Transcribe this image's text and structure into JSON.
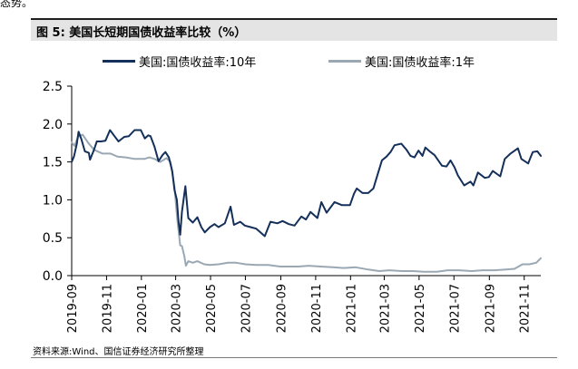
{
  "page": {
    "top_fragment": "态势。"
  },
  "figure": {
    "title": "图 5:  美国长短期国债收益率比较（%）",
    "source": "资料来源:Wind、国信证券经济研究所整理"
  },
  "colors": {
    "series_10y": "#14305a",
    "series_1y": "#9aa8b4",
    "axis": "#000000",
    "title_bg": "#e4e4e4"
  },
  "chart_data": {
    "type": "line",
    "title": "",
    "xlabel": "",
    "ylabel": "",
    "ylim": [
      0,
      2.5
    ],
    "yticks": [
      "0.0",
      "0.5",
      "1.0",
      "1.5",
      "2.0",
      "2.5"
    ],
    "xticks": [
      "2019-09",
      "2019-11",
      "2020-01",
      "2020-03",
      "2020-05",
      "2020-07",
      "2020-09",
      "2020-11",
      "2021-01",
      "2021-03",
      "2021-05",
      "2021-07",
      "2021-09",
      "2021-11"
    ],
    "xlim": [
      "2019-09-01",
      "2021-11-30"
    ],
    "grid": false,
    "legend_position": "top",
    "series": [
      {
        "name": "美国:国债收益率:10年",
        "points": [
          [
            "2019-09-01",
            1.5
          ],
          [
            "2019-09-05",
            1.57
          ],
          [
            "2019-09-10",
            1.74
          ],
          [
            "2019-09-13",
            1.9
          ],
          [
            "2019-09-18",
            1.8
          ],
          [
            "2019-09-24",
            1.64
          ],
          [
            "2019-10-01",
            1.62
          ],
          [
            "2019-10-03",
            1.53
          ],
          [
            "2019-10-10",
            1.66
          ],
          [
            "2019-10-15",
            1.77
          ],
          [
            "2019-10-22",
            1.77
          ],
          [
            "2019-10-30",
            1.78
          ],
          [
            "2019-11-07",
            1.92
          ],
          [
            "2019-11-15",
            1.84
          ],
          [
            "2019-11-22",
            1.77
          ],
          [
            "2019-12-02",
            1.83
          ],
          [
            "2019-12-10",
            1.84
          ],
          [
            "2019-12-20",
            1.92
          ],
          [
            "2019-12-31",
            1.92
          ],
          [
            "2020-01-07",
            1.81
          ],
          [
            "2020-01-13",
            1.85
          ],
          [
            "2020-01-17",
            1.84
          ],
          [
            "2020-01-24",
            1.7
          ],
          [
            "2020-01-31",
            1.51
          ],
          [
            "2020-02-07",
            1.59
          ],
          [
            "2020-02-12",
            1.63
          ],
          [
            "2020-02-18",
            1.56
          ],
          [
            "2020-02-24",
            1.38
          ],
          [
            "2020-02-28",
            1.13
          ],
          [
            "2020-03-03",
            1.0
          ],
          [
            "2020-03-06",
            0.71
          ],
          [
            "2020-03-09",
            0.54
          ],
          [
            "2020-03-12",
            0.84
          ],
          [
            "2020-03-18",
            1.18
          ],
          [
            "2020-03-23",
            0.76
          ],
          [
            "2020-03-31",
            0.7
          ],
          [
            "2020-04-08",
            0.77
          ],
          [
            "2020-04-15",
            0.64
          ],
          [
            "2020-04-21",
            0.57
          ],
          [
            "2020-04-30",
            0.64
          ],
          [
            "2020-05-08",
            0.68
          ],
          [
            "2020-05-15",
            0.64
          ],
          [
            "2020-05-26",
            0.69
          ],
          [
            "2020-06-05",
            0.91
          ],
          [
            "2020-06-11",
            0.67
          ],
          [
            "2020-06-22",
            0.71
          ],
          [
            "2020-06-30",
            0.66
          ],
          [
            "2020-07-10",
            0.64
          ],
          [
            "2020-07-20",
            0.62
          ],
          [
            "2020-08-04",
            0.52
          ],
          [
            "2020-08-14",
            0.71
          ],
          [
            "2020-08-26",
            0.69
          ],
          [
            "2020-09-04",
            0.72
          ],
          [
            "2020-09-15",
            0.68
          ],
          [
            "2020-09-25",
            0.66
          ],
          [
            "2020-10-07",
            0.78
          ],
          [
            "2020-10-15",
            0.74
          ],
          [
            "2020-10-23",
            0.84
          ],
          [
            "2020-11-04",
            0.76
          ],
          [
            "2020-11-11",
            0.97
          ],
          [
            "2020-11-20",
            0.83
          ],
          [
            "2020-12-04",
            0.97
          ],
          [
            "2020-12-17",
            0.93
          ],
          [
            "2020-12-31",
            0.93
          ],
          [
            "2021-01-07",
            1.08
          ],
          [
            "2021-01-12",
            1.15
          ],
          [
            "2021-01-22",
            1.09
          ],
          [
            "2021-02-01",
            1.09
          ],
          [
            "2021-02-10",
            1.15
          ],
          [
            "2021-02-16",
            1.3
          ],
          [
            "2021-02-25",
            1.52
          ],
          [
            "2021-03-05",
            1.57
          ],
          [
            "2021-03-12",
            1.63
          ],
          [
            "2021-03-19",
            1.72
          ],
          [
            "2021-03-31",
            1.74
          ],
          [
            "2021-04-09",
            1.66
          ],
          [
            "2021-04-16",
            1.58
          ],
          [
            "2021-04-23",
            1.56
          ],
          [
            "2021-04-30",
            1.65
          ],
          [
            "2021-05-07",
            1.58
          ],
          [
            "2021-05-12",
            1.69
          ],
          [
            "2021-05-21",
            1.63
          ],
          [
            "2021-05-28",
            1.59
          ],
          [
            "2021-06-10",
            1.45
          ],
          [
            "2021-06-18",
            1.44
          ],
          [
            "2021-06-25",
            1.52
          ],
          [
            "2021-07-02",
            1.43
          ],
          [
            "2021-07-08",
            1.32
          ],
          [
            "2021-07-19",
            1.19
          ],
          [
            "2021-07-30",
            1.24
          ],
          [
            "2021-08-04",
            1.19
          ],
          [
            "2021-08-12",
            1.36
          ],
          [
            "2021-08-24",
            1.29
          ],
          [
            "2021-08-31",
            1.3
          ],
          [
            "2021-09-07",
            1.38
          ],
          [
            "2021-09-20",
            1.31
          ],
          [
            "2021-09-28",
            1.54
          ],
          [
            "2021-10-08",
            1.61
          ],
          [
            "2021-10-21",
            1.68
          ],
          [
            "2021-10-27",
            1.54
          ],
          [
            "2021-11-08",
            1.48
          ],
          [
            "2021-11-12",
            1.56
          ],
          [
            "2021-11-16",
            1.63
          ],
          [
            "2021-11-24",
            1.64
          ],
          [
            "2021-11-30",
            1.58
          ]
        ]
      },
      {
        "name": "美国:国债收益率:1年",
        "points": [
          [
            "2019-09-01",
            1.76
          ],
          [
            "2019-09-06",
            1.71
          ],
          [
            "2019-09-12",
            1.83
          ],
          [
            "2019-09-20",
            1.86
          ],
          [
            "2019-09-30",
            1.75
          ],
          [
            "2019-10-10",
            1.66
          ],
          [
            "2019-10-25",
            1.61
          ],
          [
            "2019-11-08",
            1.61
          ],
          [
            "2019-11-20",
            1.57
          ],
          [
            "2019-12-05",
            1.56
          ],
          [
            "2019-12-20",
            1.54
          ],
          [
            "2020-01-06",
            1.54
          ],
          [
            "2020-01-15",
            1.56
          ],
          [
            "2020-01-24",
            1.54
          ],
          [
            "2020-02-03",
            1.5
          ],
          [
            "2020-02-14",
            1.55
          ],
          [
            "2020-02-21",
            1.5
          ],
          [
            "2020-02-28",
            1.17
          ],
          [
            "2020-03-04",
            0.73
          ],
          [
            "2020-03-09",
            0.4
          ],
          [
            "2020-03-12",
            0.39
          ],
          [
            "2020-03-16",
            0.26
          ],
          [
            "2020-03-19",
            0.13
          ],
          [
            "2020-03-23",
            0.19
          ],
          [
            "2020-03-31",
            0.17
          ],
          [
            "2020-04-08",
            0.19
          ],
          [
            "2020-04-20",
            0.15
          ],
          [
            "2020-04-30",
            0.14
          ],
          [
            "2020-05-15",
            0.15
          ],
          [
            "2020-06-01",
            0.17
          ],
          [
            "2020-06-15",
            0.17
          ],
          [
            "2020-07-01",
            0.15
          ],
          [
            "2020-07-20",
            0.14
          ],
          [
            "2020-08-10",
            0.14
          ],
          [
            "2020-08-31",
            0.12
          ],
          [
            "2020-09-15",
            0.12
          ],
          [
            "2020-10-01",
            0.12
          ],
          [
            "2020-10-20",
            0.13
          ],
          [
            "2020-11-10",
            0.12
          ],
          [
            "2020-12-01",
            0.11
          ],
          [
            "2020-12-20",
            0.1
          ],
          [
            "2021-01-10",
            0.11
          ],
          [
            "2021-02-01",
            0.08
          ],
          [
            "2021-02-20",
            0.06
          ],
          [
            "2021-03-10",
            0.07
          ],
          [
            "2021-04-01",
            0.06
          ],
          [
            "2021-04-20",
            0.06
          ],
          [
            "2021-05-10",
            0.05
          ],
          [
            "2021-06-01",
            0.05
          ],
          [
            "2021-06-20",
            0.07
          ],
          [
            "2021-07-10",
            0.07
          ],
          [
            "2021-08-01",
            0.06
          ],
          [
            "2021-08-20",
            0.07
          ],
          [
            "2021-09-10",
            0.07
          ],
          [
            "2021-09-30",
            0.08
          ],
          [
            "2021-10-15",
            0.09
          ],
          [
            "2021-10-29",
            0.15
          ],
          [
            "2021-11-10",
            0.15
          ],
          [
            "2021-11-22",
            0.17
          ],
          [
            "2021-11-30",
            0.23
          ]
        ]
      }
    ]
  }
}
